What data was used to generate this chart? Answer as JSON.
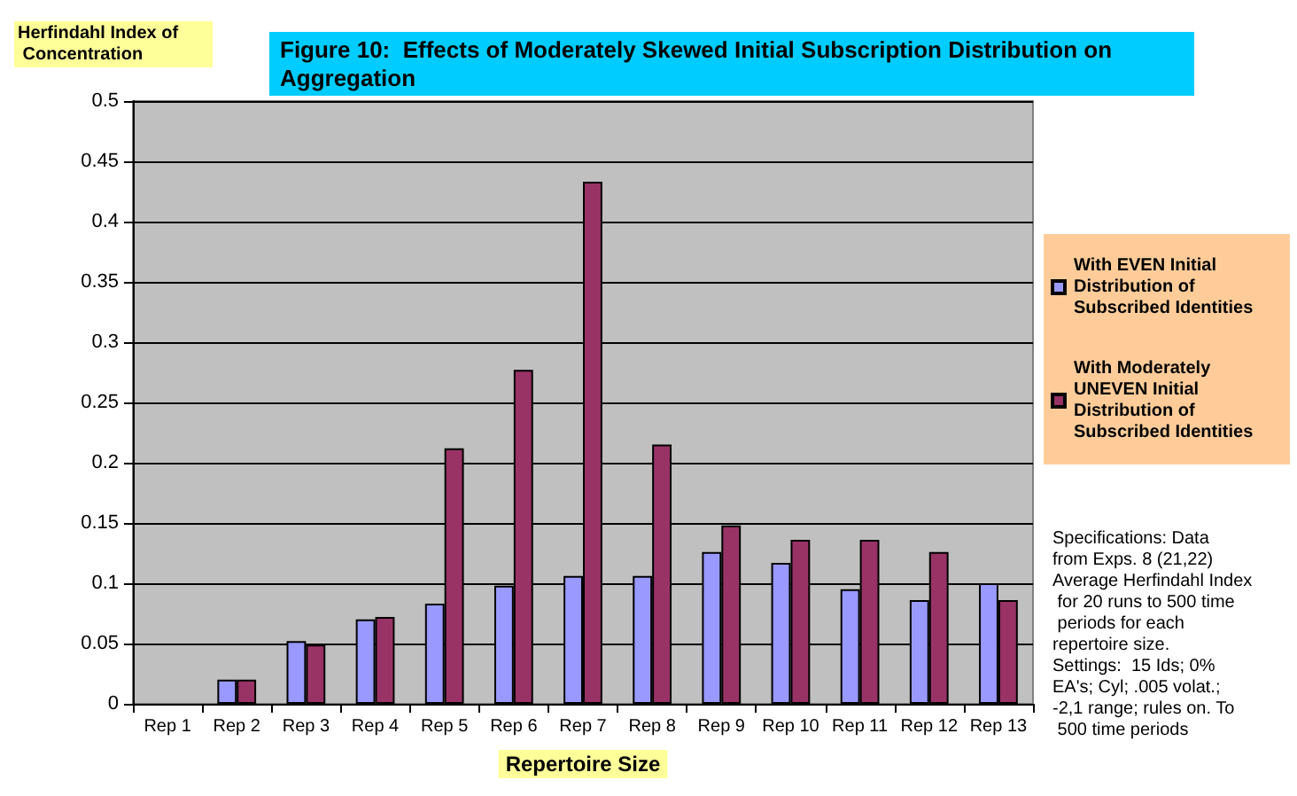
{
  "chart_data": {
    "type": "bar",
    "title": "Figure 10:  Effects of Moderately Skewed Initial Subscription Distribution on Aggregation",
    "xlabel": "Repertoire Size",
    "ylabel": "Herfindahl Index of Concentration",
    "categories": [
      "Rep 1",
      "Rep 2",
      "Rep 3",
      "Rep 4",
      "Rep 5",
      "Rep 6",
      "Rep 7",
      "Rep 8",
      "Rep 9",
      "Rep 10",
      "Rep 11",
      "Rep 12",
      "Rep 13"
    ],
    "series": [
      {
        "name": "With EVEN Initial Distribution of Subscribed Identities",
        "color": "#9999ff",
        "values": [
          null,
          0.02,
          0.052,
          0.07,
          0.083,
          0.098,
          0.106,
          0.106,
          0.126,
          0.117,
          0.095,
          0.086,
          0.1
        ]
      },
      {
        "name": "With Moderately UNEVEN Initial Distribution of Subscribed Identities",
        "color": "#993366",
        "values": [
          null,
          0.02,
          0.049,
          0.072,
          0.212,
          0.277,
          0.433,
          0.215,
          0.148,
          0.136,
          0.136,
          0.126,
          0.086
        ]
      }
    ],
    "ylim": [
      0,
      0.5
    ],
    "yticks": [
      0,
      0.05,
      0.1,
      0.15,
      0.2,
      0.25,
      0.3,
      0.35,
      0.4,
      0.45,
      0.5
    ],
    "grid": "y",
    "legend": "right",
    "annotations": [
      "Specifications: Data from Exps. 8 (21,22) Average Herfindahl Index for 20 runs to 500 time periods for each repertoire size. Settings:  15 Ids; 0% EA's; Cyl; .005 volat.; -2,1 range; rules on. To 500 time periods"
    ]
  }
}
